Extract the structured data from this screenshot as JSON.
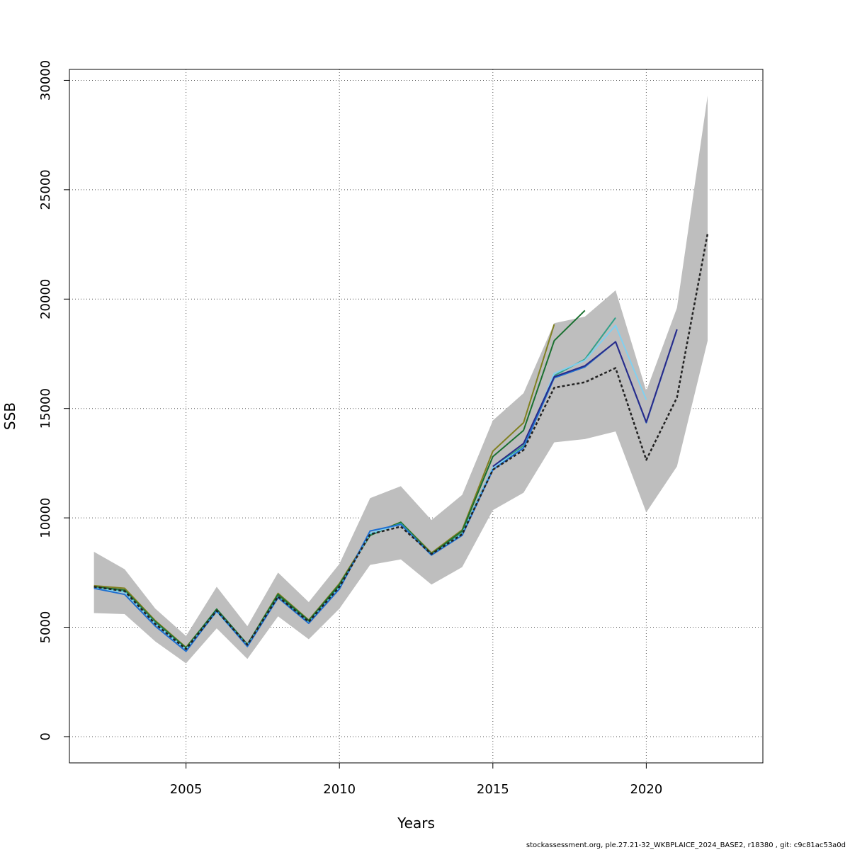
{
  "chart_data": {
    "type": "line",
    "xlabel": "Years",
    "ylabel": "SSB",
    "xlim": [
      2001.2,
      2023.8
    ],
    "ylim": [
      -1200,
      30500
    ],
    "x_ticks": [
      2005,
      2010,
      2015,
      2020
    ],
    "y_ticks": [
      0,
      5000,
      10000,
      15000,
      20000,
      25000,
      30000
    ],
    "grid": true,
    "confidence_band": {
      "color": "#bebebe",
      "x": [
        2002,
        2003,
        2004,
        2005,
        2006,
        2007,
        2008,
        2009,
        2010,
        2011,
        2012,
        2013,
        2014,
        2015,
        2016,
        2017,
        2018,
        2019,
        2020,
        2021,
        2022
      ],
      "upper": [
        8450,
        7650,
        5850,
        4600,
        6850,
        5050,
        7500,
        6150,
        7900,
        10900,
        11450,
        9900,
        11050,
        14450,
        15700,
        18900,
        19200,
        20400,
        15800,
        19600,
        29300
      ],
      "lower": [
        5650,
        5600,
        4350,
        3350,
        4950,
        3550,
        5500,
        4450,
        5850,
        7850,
        8100,
        6950,
        7750,
        10350,
        11150,
        13450,
        13600,
        13950,
        10250,
        12350,
        18100
      ]
    },
    "series": [
      {
        "color": "#808020",
        "dashed": false,
        "x": [
          2002,
          2003,
          2004,
          2005,
          2006,
          2007,
          2008,
          2009,
          2010,
          2011,
          2012,
          2013,
          2014,
          2015,
          2016,
          2017
        ],
        "values": [
          6900,
          6780,
          5300,
          4080,
          5800,
          4200,
          6550,
          5330,
          7000,
          9250,
          9800,
          8400,
          9450,
          13050,
          14350,
          18850
        ]
      },
      {
        "color": "#1a7030",
        "dashed": false,
        "x": [
          2002,
          2003,
          2004,
          2005,
          2006,
          2007,
          2008,
          2009,
          2010,
          2011,
          2012,
          2013,
          2014,
          2015,
          2016,
          2017,
          2018
        ],
        "values": [
          6850,
          6700,
          5250,
          4050,
          5830,
          4220,
          6500,
          5300,
          6950,
          9200,
          9800,
          8350,
          9400,
          12800,
          14000,
          18100,
          19480
        ]
      },
      {
        "color": "#33a088",
        "dashed": false,
        "x": [
          2002,
          2003,
          2004,
          2005,
          2006,
          2007,
          2008,
          2009,
          2010,
          2011,
          2012,
          2013,
          2014,
          2015,
          2016,
          2017,
          2018,
          2019
        ],
        "values": [
          6800,
          6650,
          5200,
          4000,
          5750,
          4180,
          6400,
          5250,
          6850,
          9250,
          9750,
          8300,
          9300,
          12300,
          13300,
          16500,
          17250,
          19150
        ]
      },
      {
        "color": "#80d0f0",
        "dashed": false,
        "x": [
          2002,
          2003,
          2004,
          2005,
          2006,
          2007,
          2008,
          2009,
          2010,
          2011,
          2012,
          2013,
          2014,
          2015,
          2016,
          2017,
          2018,
          2019,
          2020
        ],
        "values": [
          6800,
          6600,
          5150,
          3980,
          5700,
          4150,
          6350,
          5200,
          6800,
          9300,
          9700,
          8300,
          9250,
          12300,
          13200,
          16600,
          17200,
          18800,
          15400
        ]
      },
      {
        "color": "#1f6fd0",
        "dashed": false,
        "x": [
          2002,
          2003,
          2004,
          2005,
          2006,
          2007,
          2008,
          2009,
          2010,
          2011,
          2012,
          2013,
          2014,
          2015,
          2016,
          2017,
          2018,
          2019,
          2020,
          2021
        ],
        "values": [
          6780,
          6500,
          5050,
          3900,
          5750,
          4120,
          6350,
          5180,
          6750,
          9400,
          9700,
          8300,
          9200,
          12200,
          13200,
          16400,
          16900,
          18050,
          14350,
          18600
        ]
      },
      {
        "color": "#2a2a88",
        "dashed": false,
        "x": [
          2015,
          2016,
          2017,
          2018,
          2019,
          2020,
          2021
        ],
        "values": [
          12350,
          13400,
          16450,
          16950,
          18050,
          14380,
          18620
        ]
      },
      {
        "color": "#222222",
        "dashed": true,
        "x": [
          2002,
          2003,
          2004,
          2005,
          2006,
          2007,
          2008,
          2009,
          2010,
          2011,
          2012,
          2013,
          2014,
          2015,
          2016,
          2017,
          2018,
          2019,
          2020,
          2021,
          2022
        ],
        "values": [
          6850,
          6650,
          5150,
          4000,
          5750,
          4200,
          6400,
          5250,
          6850,
          9250,
          9600,
          8350,
          9250,
          12200,
          13100,
          15950,
          16200,
          16850,
          12650,
          15500,
          23000
        ]
      }
    ]
  },
  "footer": "stockassessment.org, ple.27.21-32_WKBPLAICE_2024_BASE2, r18380 , git: c9c81ac53a0d"
}
